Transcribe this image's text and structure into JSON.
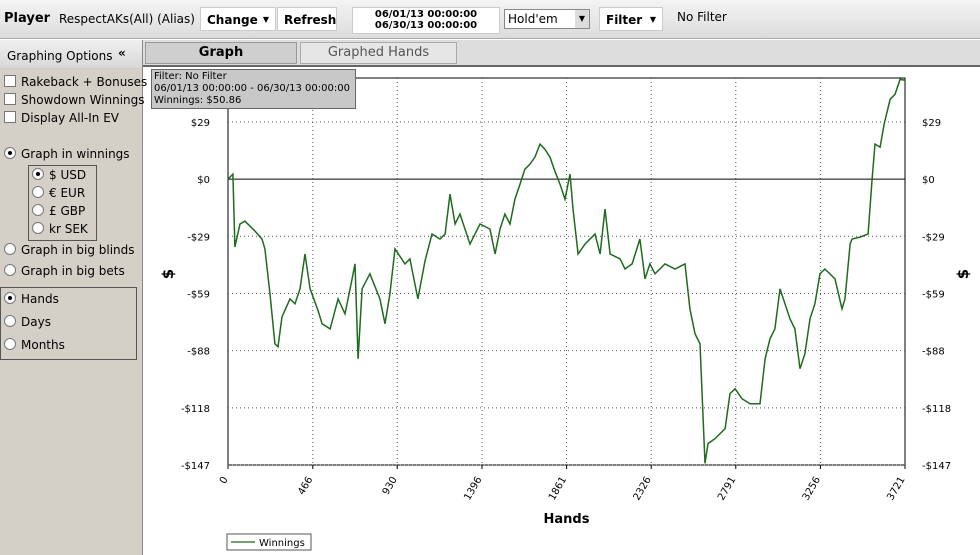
{
  "toolbar": {
    "player_label": "Player",
    "player_name": "RespectAKs(All) (Alias)",
    "change": "Change",
    "refresh": "Refresh",
    "date_from": "06/01/13 00:00:00",
    "date_to": "06/30/13 00:00:00",
    "game": "Hold'em",
    "filter": "Filter",
    "filter_value": "No Filter"
  },
  "sidebar": {
    "title": "Graphing Options",
    "checkboxes": [
      "Rakeback + Bonuses",
      "Showdown Winnings",
      "Display All-In EV"
    ],
    "graph_modes": [
      "Graph in winnings",
      "Graph in big blinds",
      "Graph in big bets"
    ],
    "currencies": [
      "$ USD",
      "€ EUR",
      "£ GBP",
      "kr SEK"
    ],
    "x_modes": [
      "Hands",
      "Days",
      "Months"
    ]
  },
  "tabs": [
    "Graph",
    "Graphed Hands"
  ],
  "chart_data": {
    "type": "line",
    "info": [
      "Filter: No Filter",
      "06/01/13 00:00:00 - 06/30/13 00:00:00",
      "Winnings: $50.86"
    ],
    "y_label": "$",
    "x_label": "Hands",
    "x": [
      0,
      27,
      38,
      66,
      93,
      148,
      187,
      203,
      231,
      258,
      275,
      297,
      341,
      368,
      396,
      423,
      451,
      495,
      517,
      561,
      605,
      643,
      682,
      698,
      715,
      737,
      780,
      835,
      863,
      890,
      918,
      973,
      1000,
      1044,
      1083,
      1121,
      1165,
      1193,
      1220,
      1248,
      1275,
      1330,
      1385,
      1440,
      1468,
      1495,
      1522,
      1550,
      1577,
      1605,
      1632,
      1660,
      1687,
      1715,
      1742,
      1770,
      1797,
      1825,
      1852,
      1880,
      1896,
      1924,
      1962,
      2017,
      2045,
      2072,
      2100,
      2155,
      2182,
      2221,
      2264,
      2292,
      2319,
      2347,
      2402,
      2457,
      2512,
      2539,
      2567,
      2594,
      2622,
      2638,
      2677,
      2732,
      2759,
      2787,
      2825,
      2869,
      2924,
      2952,
      2979,
      3006,
      3034,
      3089,
      3116,
      3144,
      3171,
      3199,
      3226,
      3254,
      3281,
      3336,
      3375,
      3391,
      3419,
      3430,
      3474,
      3518,
      3540,
      3556,
      3584,
      3606,
      3639,
      3666,
      3694,
      3721
    ],
    "series": [
      {
        "name": "Winnings",
        "color": "#1e6b1e",
        "values": [
          0,
          2.6,
          -34.9,
          -23.1,
          -21.6,
          -26.7,
          -30.8,
          -35.9,
          -59.0,
          -84.7,
          -86.2,
          -70.8,
          -61.6,
          -64.1,
          -56.4,
          -38.5,
          -56.4,
          -67.7,
          -74.4,
          -77.0,
          -61.6,
          -69.3,
          -51.3,
          -43.6,
          -92.4,
          -56.4,
          -48.7,
          -61.6,
          -74.4,
          -59.0,
          -35.9,
          -43.6,
          -41.0,
          -61.6,
          -42.1,
          -28.2,
          -30.8,
          -28.2,
          -7.7,
          -23.1,
          -18.0,
          -33.4,
          -23.1,
          -25.7,
          -38.5,
          -25.7,
          -18.0,
          -23.1,
          -10.3,
          -2.6,
          5.1,
          7.7,
          11.3,
          18.0,
          15.4,
          11.3,
          4.1,
          -2.6,
          -10.3,
          2.6,
          -15.4,
          -38.5,
          -33.4,
          -28.2,
          -38.5,
          -15.4,
          -38.5,
          -41.0,
          -46.2,
          -43.6,
          -30.8,
          -51.3,
          -43.6,
          -48.7,
          -43.6,
          -46.2,
          -43.6,
          -66.7,
          -79.5,
          -84.7,
          -146.2,
          -136.0,
          -133.4,
          -128.3,
          -110.3,
          -107.8,
          -112.9,
          -115.5,
          -115.5,
          -92.4,
          -82.1,
          -77.0,
          -56.4,
          -71.8,
          -77.0,
          -97.5,
          -89.8,
          -71.8,
          -64.1,
          -48.7,
          -46.2,
          -51.3,
          -66.7,
          -61.6,
          -33.4,
          -30.8,
          -29.8,
          -28.2,
          0,
          18.0,
          16.4,
          28.2,
          41.0,
          43.6,
          51.3,
          50.86
        ]
      }
    ],
    "xlim": [
      0,
      3721
    ],
    "ylim": [
      -147,
      52
    ],
    "xticks": [
      0,
      466,
      930,
      1396,
      1861,
      2326,
      2791,
      3256,
      3721
    ],
    "yticks": [
      {
        "value": 29.4,
        "label": "$29"
      },
      {
        "value": 0,
        "label": "$0"
      },
      {
        "value": -29.4,
        "label": "-$29"
      },
      {
        "value": -58.8,
        "label": "-$59"
      },
      {
        "value": -88.2,
        "label": "-$88"
      },
      {
        "value": -117.6,
        "label": "-$118"
      },
      {
        "value": -147,
        "label": "-$147"
      }
    ],
    "grid": true
  }
}
